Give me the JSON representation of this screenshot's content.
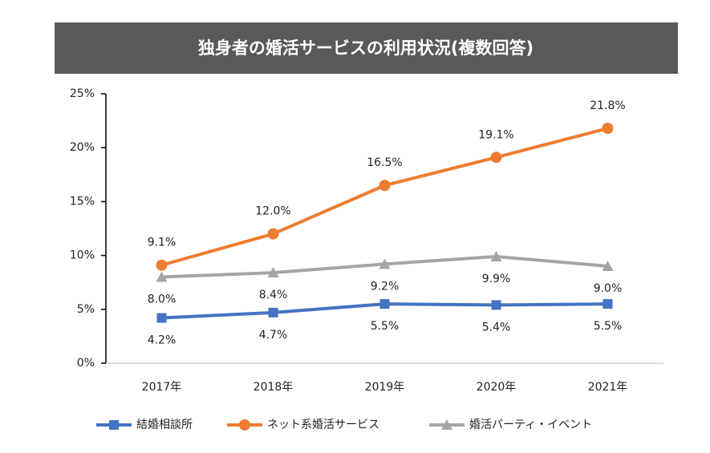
{
  "chart_data": {
    "type": "line",
    "title": "独身者の婚活サービスの利用状況(複数回答)",
    "categories": [
      "2017年",
      "2018年",
      "2019年",
      "2020年",
      "2021年"
    ],
    "series": [
      {
        "name": "結婚相談所",
        "color": "#4472c4",
        "marker": "square",
        "label_position": "below",
        "values": [
          4.2,
          4.7,
          5.5,
          5.4,
          5.5
        ],
        "value_labels": [
          "4.2%",
          "4.7%",
          "5.5%",
          "5.4%",
          "5.5%"
        ]
      },
      {
        "name": "ネット系婚活サービス",
        "color": "#ed7d31",
        "marker": "circle",
        "label_position": "above",
        "values": [
          9.1,
          12.0,
          16.5,
          19.1,
          21.8
        ],
        "value_labels": [
          "9.1%",
          "12.0%",
          "16.5%",
          "19.1%",
          "21.8%"
        ]
      },
      {
        "name": "婚活パーティ・イベント",
        "color": "#a5a5a5",
        "marker": "triangle",
        "label_position": "below",
        "values": [
          8.0,
          8.4,
          9.2,
          9.9,
          9.0
        ],
        "value_labels": [
          "8.0%",
          "8.4%",
          "9.2%",
          "9.9%",
          "9.0%"
        ]
      }
    ],
    "ylim": [
      0,
      25
    ],
    "yticks": [
      {
        "value": 0,
        "label": "0%"
      },
      {
        "value": 5,
        "label": "5%"
      },
      {
        "value": 10,
        "label": "10%"
      },
      {
        "value": 15,
        "label": "15%"
      },
      {
        "value": 20,
        "label": "20%"
      },
      {
        "value": 25,
        "label": "25%"
      }
    ],
    "grid": false,
    "legend": "bottom"
  }
}
